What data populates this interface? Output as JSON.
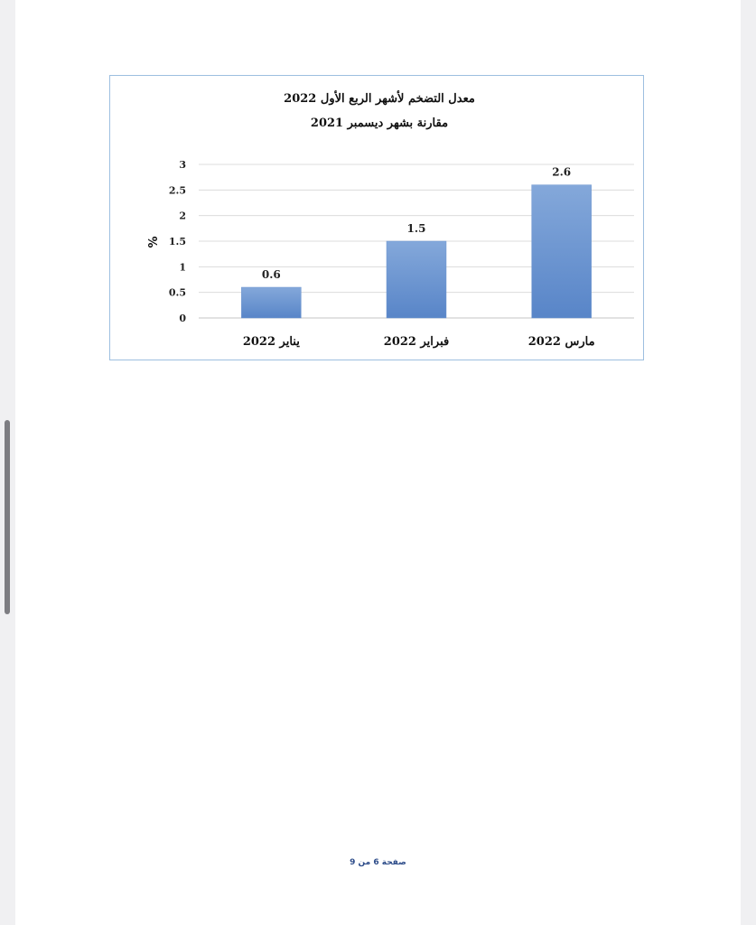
{
  "chart_data": {
    "type": "bar",
    "title": "معدل التضخم لأشهر الربع الأول 2022",
    "subtitle": "مقارنة بشهر ديسمبر 2021",
    "categories": [
      "يناير 2022",
      "فبراير 2022",
      "مارس 2022"
    ],
    "values": [
      0.6,
      1.5,
      2.6
    ],
    "data_labels": [
      "0.6",
      "1.5",
      "2.6"
    ],
    "ylabel": "%",
    "xlabel": "",
    "ylim": [
      0,
      3
    ],
    "yticks": [
      0,
      0.5,
      1,
      1.5,
      2,
      2.5,
      3
    ],
    "ytick_labels": [
      "0",
      "0.5",
      "1",
      "1.5",
      "2",
      "2.5",
      "3"
    ],
    "grid": true,
    "legend": "none",
    "bar_color_top": "#84a8da",
    "bar_color_bottom": "#5885c8",
    "frame_color": "#9dbfe0"
  },
  "footer": {
    "page_label": "صفحة 6 من 9"
  }
}
